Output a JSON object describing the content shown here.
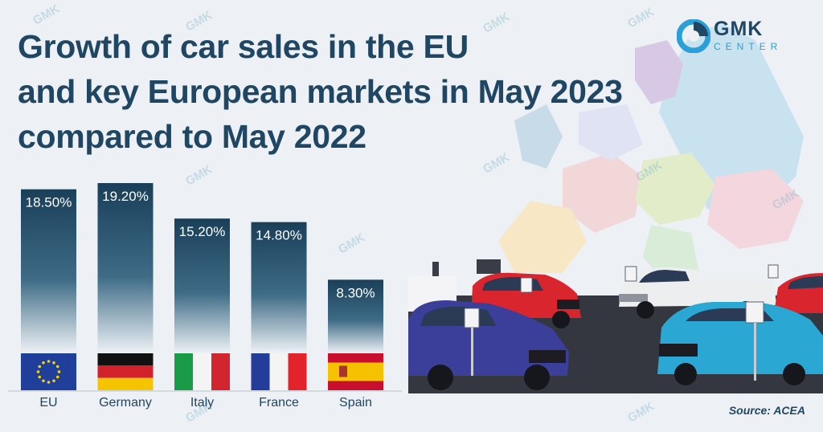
{
  "header": {
    "title_lines": [
      "Growth of car sales in the EU",
      "and key European markets in May 2023",
      "compared to May 2022"
    ]
  },
  "logo": {
    "name": "GMK",
    "sub": "CENTER"
  },
  "source": "Source: ACEA",
  "watermark": "GMK",
  "chart_data": {
    "type": "bar",
    "title": "Growth of car sales in the EU and key European markets in May 2023 compared to May 2022",
    "categories": [
      "EU",
      "Germany",
      "Italy",
      "France",
      "Spain"
    ],
    "values": [
      18.5,
      19.2,
      15.2,
      14.8,
      8.3
    ],
    "labels": [
      "18.50%",
      "19.20%",
      "15.20%",
      "14.80%",
      "8.30%"
    ],
    "unit": "%",
    "xlabel": "",
    "ylabel": "",
    "ylim": [
      0,
      19.2
    ],
    "flags": [
      "eu-flag",
      "germany-flag",
      "italy-flag",
      "france-flag",
      "spain-flag"
    ]
  },
  "colors": {
    "bar_top": "#1a3f59",
    "bar_bottom": "#eef2f6",
    "title": "#1f4662",
    "accent": "#2a9fd8"
  }
}
